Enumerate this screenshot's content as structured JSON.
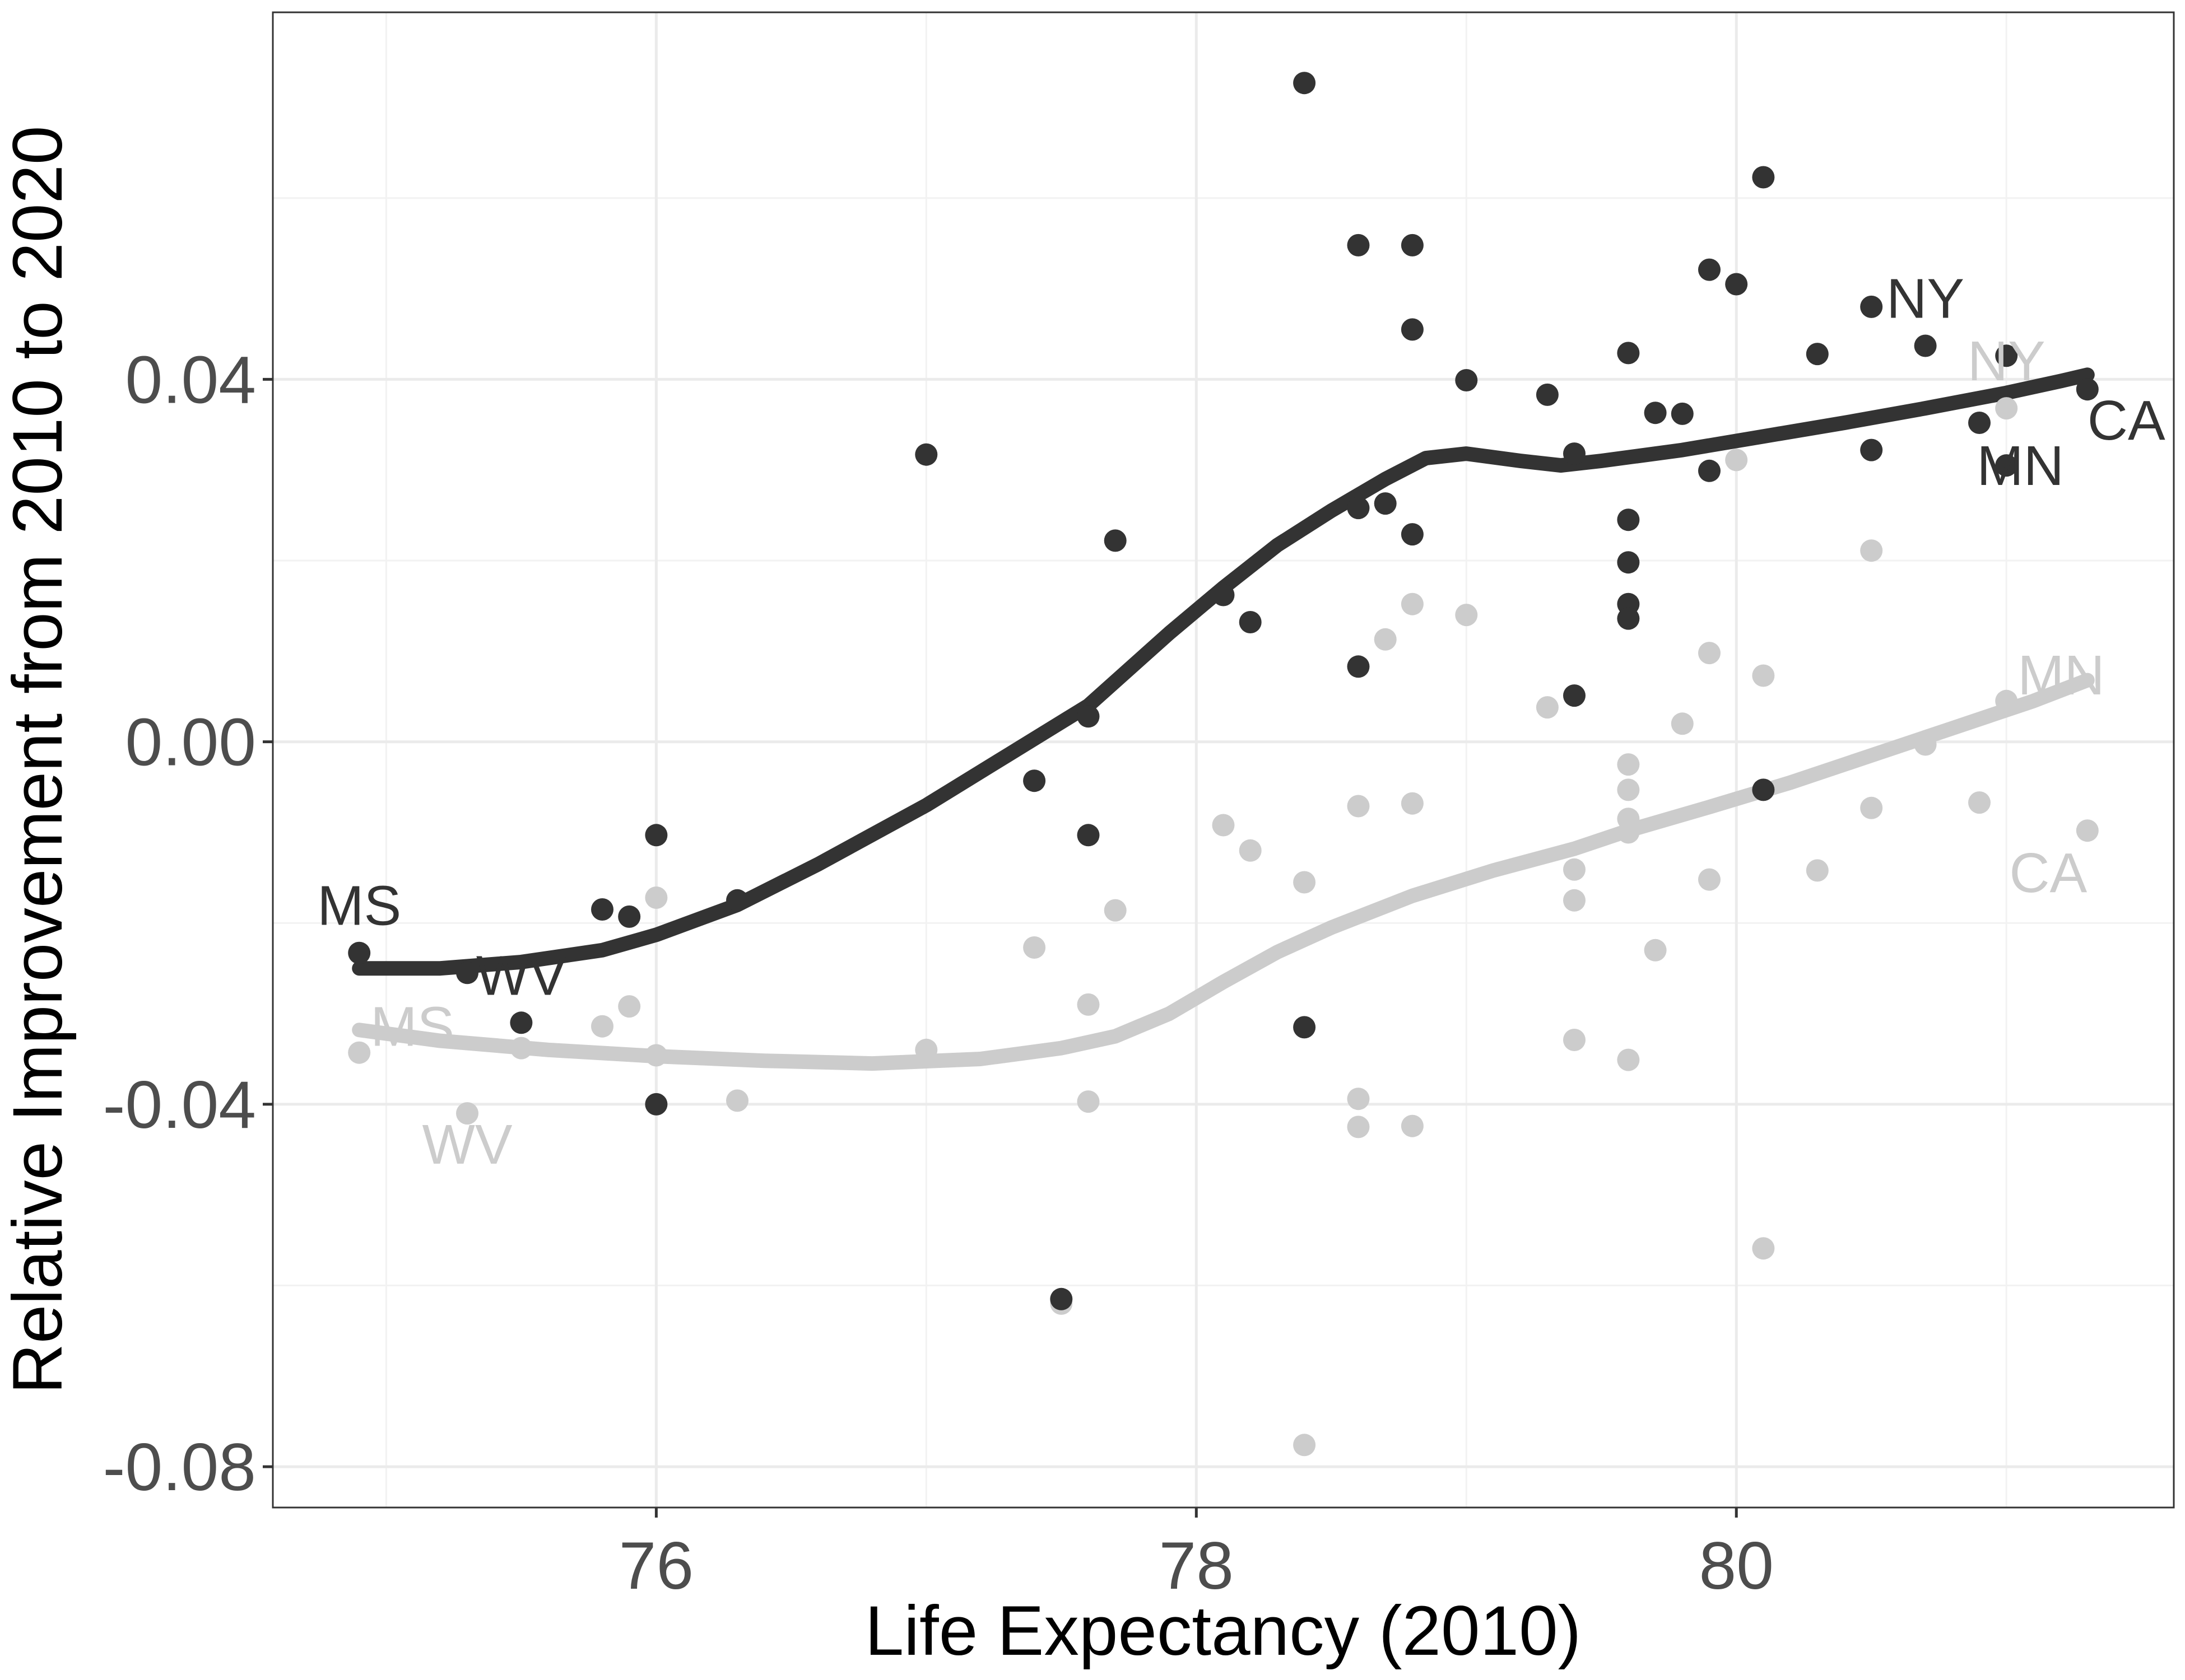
{
  "chart_data": {
    "type": "scatter",
    "title": "",
    "xlabel": "Life Expectancy (2010)",
    "ylabel": "Relative Improvement from 2010 to 2020",
    "xlim": [
      74.58,
      81.62
    ],
    "ylim": [
      -0.0845,
      0.0805
    ],
    "xticks": [
      76,
      78,
      80
    ],
    "xtick_labels": [
      "76",
      "78",
      "80"
    ],
    "yticks": [
      -0.08,
      -0.04,
      0.0,
      0.04
    ],
    "ytick_labels": [
      "-0.08",
      "-0.04",
      "0.00",
      "0.04"
    ],
    "grid": true,
    "legend": "none",
    "colors": {
      "dark": "#333333",
      "light": "#cccccc"
    },
    "series": [
      {
        "name": "dark",
        "color": "#333333",
        "points": [
          [
            74.9,
            -0.0233
          ],
          [
            75.3,
            -0.0255
          ],
          [
            75.5,
            -0.031
          ],
          [
            75.8,
            -0.0185
          ],
          [
            75.9,
            -0.0193
          ],
          [
            76.0,
            -0.0103
          ],
          [
            76.0,
            -0.04
          ],
          [
            76.3,
            -0.0175
          ],
          [
            77.0,
            0.0317
          ],
          [
            77.4,
            -0.0043
          ],
          [
            77.5,
            -0.0615
          ],
          [
            77.6,
            0.0028
          ],
          [
            77.6,
            -0.0103
          ],
          [
            77.7,
            0.0222
          ],
          [
            78.1,
            0.0162
          ],
          [
            78.2,
            0.0132
          ],
          [
            78.4,
            0.0727
          ],
          [
            78.4,
            -0.0315
          ],
          [
            78.6,
            0.0548
          ],
          [
            78.6,
            0.0258
          ],
          [
            78.6,
            0.0083
          ],
          [
            78.7,
            0.0263
          ],
          [
            78.8,
            0.0548
          ],
          [
            78.8,
            0.0455
          ],
          [
            78.8,
            0.0229
          ],
          [
            79.0,
            0.0399
          ],
          [
            79.3,
            0.0383
          ],
          [
            79.4,
            0.0318
          ],
          [
            79.4,
            0.0051
          ],
          [
            79.6,
            0.0429
          ],
          [
            79.6,
            0.0245
          ],
          [
            79.6,
            0.0198
          ],
          [
            79.6,
            0.0152
          ],
          [
            79.6,
            0.0136
          ],
          [
            79.7,
            0.0363
          ],
          [
            79.8,
            0.0362
          ],
          [
            79.9,
            0.0521
          ],
          [
            79.9,
            0.0299
          ],
          [
            80.0,
            0.0505
          ],
          [
            80.1,
            0.0623
          ],
          [
            80.1,
            -0.0053
          ],
          [
            80.3,
            0.0428
          ],
          [
            80.5,
            0.048
          ],
          [
            80.5,
            0.0322
          ],
          [
            80.7,
            0.0437
          ],
          [
            80.9,
            0.0352
          ],
          [
            81.0,
            0.0426
          ],
          [
            81.0,
            0.0305
          ],
          [
            81.3,
            0.0389
          ]
        ],
        "smooth": [
          [
            74.9,
            -0.025
          ],
          [
            75.2,
            -0.025
          ],
          [
            75.5,
            -0.0243
          ],
          [
            75.8,
            -0.023
          ],
          [
            76.0,
            -0.0213
          ],
          [
            76.3,
            -0.018
          ],
          [
            76.6,
            -0.0135
          ],
          [
            77.0,
            -0.007
          ],
          [
            77.3,
            -0.0015
          ],
          [
            77.6,
            0.004
          ],
          [
            77.9,
            0.012
          ],
          [
            78.1,
            0.017
          ],
          [
            78.3,
            0.0217
          ],
          [
            78.5,
            0.0255
          ],
          [
            78.7,
            0.029
          ],
          [
            78.85,
            0.0313
          ],
          [
            79.0,
            0.0318
          ],
          [
            79.2,
            0.031
          ],
          [
            79.35,
            0.0305
          ],
          [
            79.5,
            0.031
          ],
          [
            79.8,
            0.0322
          ],
          [
            80.1,
            0.0337
          ],
          [
            80.4,
            0.0352
          ],
          [
            80.7,
            0.0368
          ],
          [
            81.0,
            0.0385
          ],
          [
            81.2,
            0.0398
          ],
          [
            81.3,
            0.0405
          ]
        ],
        "labels": [
          {
            "text": "MS",
            "x": 74.9,
            "y": -0.0233,
            "pos": "above"
          },
          {
            "text": "WV",
            "x": 75.5,
            "y": -0.031,
            "pos": "above"
          },
          {
            "text": "NY",
            "x": 80.7,
            "y": 0.0437,
            "pos": "above"
          },
          {
            "text": "CA",
            "x": 81.3,
            "y": 0.0389,
            "pos": "below-right"
          },
          {
            "text": "MN",
            "x": 81.0,
            "y": 0.0305,
            "pos": "center"
          }
        ]
      },
      {
        "name": "light",
        "color": "#cccccc",
        "points": [
          [
            74.9,
            -0.0343
          ],
          [
            75.3,
            -0.041
          ],
          [
            75.5,
            -0.0338
          ],
          [
            75.8,
            -0.0314
          ],
          [
            75.9,
            -0.0292
          ],
          [
            76.0,
            -0.0172
          ],
          [
            76.0,
            -0.0346
          ],
          [
            76.3,
            -0.0396
          ],
          [
            77.0,
            -0.034
          ],
          [
            77.4,
            -0.0227
          ],
          [
            77.5,
            -0.062
          ],
          [
            77.6,
            -0.029
          ],
          [
            77.6,
            -0.0397
          ],
          [
            77.7,
            -0.0186
          ],
          [
            78.1,
            -0.0092
          ],
          [
            78.2,
            -0.012
          ],
          [
            78.4,
            -0.0776
          ],
          [
            78.4,
            -0.0155
          ],
          [
            78.6,
            -0.0071
          ],
          [
            78.6,
            -0.0394
          ],
          [
            78.6,
            -0.0425
          ],
          [
            78.7,
            0.0113
          ],
          [
            78.8,
            0.0152
          ],
          [
            78.8,
            -0.0068
          ],
          [
            78.8,
            -0.0424
          ],
          [
            79.0,
            0.014
          ],
          [
            79.3,
            0.0038
          ],
          [
            79.4,
            -0.0141
          ],
          [
            79.4,
            -0.0175
          ],
          [
            79.4,
            -0.0329
          ],
          [
            79.6,
            -0.0025
          ],
          [
            79.6,
            -0.0053
          ],
          [
            79.6,
            -0.0085
          ],
          [
            79.6,
            -0.01
          ],
          [
            79.6,
            -0.0351
          ],
          [
            79.7,
            -0.023
          ],
          [
            79.8,
            0.002
          ],
          [
            79.9,
            0.0098
          ],
          [
            79.9,
            -0.0152
          ],
          [
            80.0,
            0.0311
          ],
          [
            80.1,
            0.0073
          ],
          [
            80.1,
            -0.0559
          ],
          [
            80.3,
            -0.0142
          ],
          [
            80.5,
            0.0211
          ],
          [
            80.5,
            -0.0073
          ],
          [
            80.7,
            -0.0003
          ],
          [
            80.9,
            -0.0067
          ],
          [
            81.0,
            0.0368
          ],
          [
            81.0,
            0.0045
          ],
          [
            81.3,
            -0.0098
          ]
        ],
        "smooth": [
          [
            74.9,
            -0.0318
          ],
          [
            75.2,
            -0.033
          ],
          [
            75.6,
            -0.034
          ],
          [
            76.0,
            -0.0347
          ],
          [
            76.4,
            -0.0352
          ],
          [
            76.8,
            -0.0355
          ],
          [
            77.2,
            -0.035
          ],
          [
            77.5,
            -0.0338
          ],
          [
            77.7,
            -0.0325
          ],
          [
            77.9,
            -0.03
          ],
          [
            78.1,
            -0.0265
          ],
          [
            78.3,
            -0.0232
          ],
          [
            78.5,
            -0.0205
          ],
          [
            78.8,
            -0.017
          ],
          [
            79.1,
            -0.0142
          ],
          [
            79.4,
            -0.0118
          ],
          [
            79.6,
            -0.0098
          ],
          [
            79.9,
            -0.0072
          ],
          [
            80.2,
            -0.0045
          ],
          [
            80.5,
            -0.0015
          ],
          [
            80.8,
            0.0015
          ],
          [
            81.1,
            0.0045
          ],
          [
            81.3,
            0.0068
          ]
        ],
        "labels": [
          {
            "text": "MS",
            "x": 74.9,
            "y": -0.0343,
            "pos": "above-right"
          },
          {
            "text": "WV",
            "x": 75.3,
            "y": -0.041,
            "pos": "below"
          },
          {
            "text": "NY",
            "x": 81.0,
            "y": 0.0368,
            "pos": "above"
          },
          {
            "text": "MN",
            "x": 81.0,
            "y": 0.0045,
            "pos": "above-right"
          },
          {
            "text": "CA",
            "x": 81.3,
            "y": -0.0098,
            "pos": "below-left"
          }
        ]
      }
    ]
  }
}
